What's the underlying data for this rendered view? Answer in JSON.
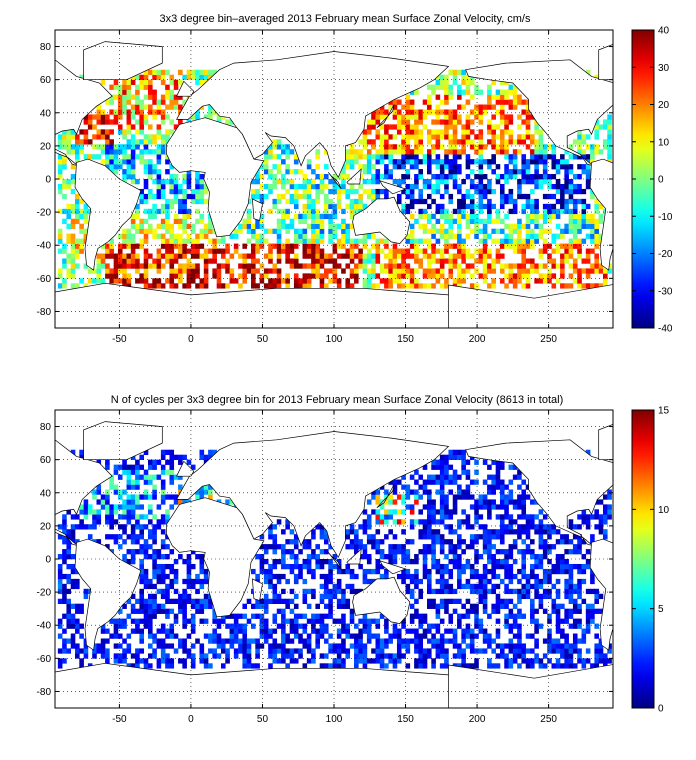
{
  "chart_data": [
    {
      "type": "heatmap",
      "title": "3x3 degree bin–averaged 2013 February mean Surface Zonal Velocity, cm/s",
      "xlabel": "",
      "ylabel": "",
      "xlim": [
        -95,
        295
      ],
      "ylim": [
        -90,
        90
      ],
      "xticks": [
        -50,
        0,
        50,
        100,
        150,
        200,
        250
      ],
      "yticks": [
        -80,
        -60,
        -40,
        -20,
        0,
        20,
        40,
        60,
        80
      ],
      "grid": true,
      "bin_size_deg": 3,
      "colormap": "jet",
      "colorbar": {
        "min": -40,
        "max": 40,
        "ticks": [
          -40,
          -30,
          -20,
          -10,
          0,
          10,
          20,
          30,
          40
        ]
      },
      "regions": [
        {
          "lon": [
            -80,
            -5
          ],
          "lat": [
            30,
            65
          ],
          "values": [
            0,
            10,
            20,
            30
          ]
        },
        {
          "lon": [
            -80,
            -50
          ],
          "lat": [
            20,
            40
          ],
          "values": [
            20,
            30,
            40
          ]
        },
        {
          "lon": [
            -60,
            10
          ],
          "lat": [
            -20,
            20
          ],
          "values": [
            -30,
            -20,
            -10,
            0
          ]
        },
        {
          "lon": [
            -85,
            20
          ],
          "lat": [
            -50,
            -25
          ],
          "values": [
            0,
            10,
            20
          ]
        },
        {
          "lon": [
            -60,
            120
          ],
          "lat": [
            -65,
            -40
          ],
          "values": [
            15,
            25,
            35,
            40
          ]
        },
        {
          "lon": [
            40,
            110
          ],
          "lat": [
            -35,
            20
          ],
          "values": [
            -20,
            -10,
            0,
            10
          ]
        },
        {
          "lon": [
            120,
            240
          ],
          "lat": [
            15,
            50
          ],
          "values": [
            10,
            20,
            30
          ]
        },
        {
          "lon": [
            130,
            280
          ],
          "lat": [
            -20,
            15
          ],
          "values": [
            -40,
            -30,
            -20,
            -10
          ]
        },
        {
          "lon": [
            150,
            285
          ],
          "lat": [
            -40,
            -20
          ],
          "values": [
            -20,
            -10,
            0,
            10
          ]
        },
        {
          "lon": [
            130,
            290
          ],
          "lat": [
            -65,
            -40
          ],
          "values": [
            10,
            20,
            30
          ]
        }
      ]
    },
    {
      "type": "heatmap",
      "title": "N of cycles per 3x3 degree bin for 2013 February mean Surface Zonal Velocity (8613 in total)",
      "xlabel": "",
      "ylabel": "",
      "xlim": [
        -95,
        295
      ],
      "ylim": [
        -90,
        90
      ],
      "xticks": [
        -50,
        0,
        50,
        100,
        150,
        200,
        250
      ],
      "yticks": [
        -80,
        -60,
        -40,
        -20,
        0,
        20,
        40,
        60,
        80
      ],
      "grid": true,
      "bin_size_deg": 3,
      "colormap": "jet",
      "colorbar": {
        "min": 0,
        "max": 15,
        "ticks": [
          0,
          5,
          10,
          15
        ]
      },
      "regions": [
        {
          "lon": [
            -90,
            290
          ],
          "lat": [
            -65,
            65
          ],
          "values": [
            1,
            2,
            3
          ]
        },
        {
          "lon": [
            -80,
            0
          ],
          "lat": [
            25,
            55
          ],
          "values": [
            2,
            3,
            5,
            7
          ]
        },
        {
          "lon": [
            130,
            160
          ],
          "lat": [
            20,
            40
          ],
          "values": [
            3,
            6,
            10,
            13
          ]
        },
        {
          "lon": [
            -10,
            40
          ],
          "lat": [
            30,
            45
          ],
          "values": [
            4,
            7,
            11
          ]
        }
      ]
    }
  ]
}
